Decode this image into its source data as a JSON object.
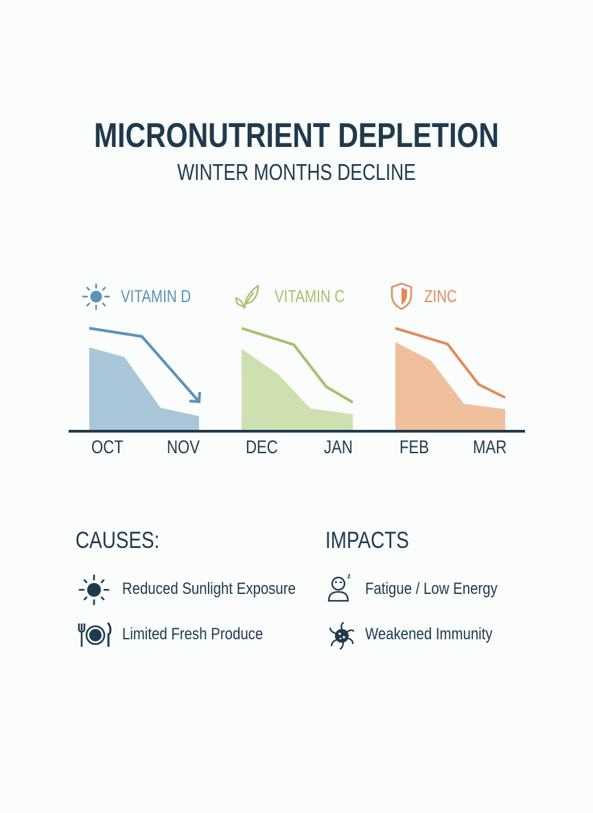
{
  "title": "MICRONUTRIENT DEPLETION",
  "subtitle": "WINTER MONTHS DECLINE",
  "colors": {
    "text": "#1f3a4d",
    "vitamin_d": "#5b93b8",
    "vitamin_c": "#a4c26b",
    "zinc": "#e08d5b"
  },
  "chart_data": {
    "type": "area",
    "categories": [
      "OCT",
      "NOV",
      "DEC",
      "JAN",
      "FEB",
      "MAR"
    ],
    "ylim": [
      0,
      100
    ],
    "axis_numbers_shown": false,
    "grid": false,
    "series": [
      {
        "name": "VITAMIN D",
        "icon": "sun-icon",
        "color": "#5b93b8",
        "fill": "#a9c7d9",
        "months": [
          "OCT",
          "NOV"
        ],
        "line": [
          75,
          69,
          21.5
        ],
        "area": [
          61,
          54,
          17,
          11
        ],
        "line_end": "arrow"
      },
      {
        "name": "VITAMIN C",
        "icon": "leaf-icon",
        "color": "#a4c26b",
        "fill": "#cfe0b0",
        "months": [
          "DEC",
          "JAN"
        ],
        "line": [
          75,
          63,
          32.5,
          21
        ],
        "area": [
          60,
          41.5,
          16.5,
          12.5
        ]
      },
      {
        "name": "ZINC",
        "icon": "shield-icon",
        "color": "#e08d5b",
        "fill": "#f0c09c",
        "months": [
          "FEB",
          "MAR"
        ],
        "line": [
          75,
          63.5,
          34,
          24.5
        ],
        "area": [
          65,
          51.5,
          20,
          16
        ]
      }
    ]
  },
  "causes": {
    "heading": "CAUSES:",
    "items": [
      {
        "label": "Reduced Sunlight Exposure",
        "icon": "sun-icon"
      },
      {
        "label": "Limited Fresh Produce",
        "icon": "plate-cutlery-icon"
      }
    ]
  },
  "impacts": {
    "heading": "IMPACTS",
    "items": [
      {
        "label": "Fatigue / Low Energy",
        "icon": "sleepy-person-icon"
      },
      {
        "label": "Weakened Immunity",
        "icon": "virus-icon"
      }
    ]
  }
}
